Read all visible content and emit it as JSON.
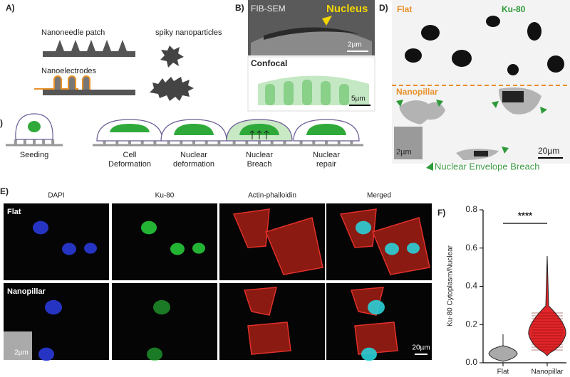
{
  "panel_a": {
    "label": "A)",
    "items": [
      "Nanoneedle patch",
      "spiky nanoparticles",
      "Nanoelectrodes"
    ]
  },
  "panel_b": {
    "label": "B)",
    "top_image": {
      "title": "FIB-SEM",
      "annotation": "Nucleus",
      "scale": "2µm"
    },
    "bottom_image": {
      "title": "Confocal",
      "scale": "5µm"
    }
  },
  "panel_c": {
    "label": ")",
    "steps": [
      {
        "lines": [
          "Seeding"
        ]
      },
      {
        "lines": [
          "Cell",
          "Deformation"
        ]
      },
      {
        "lines": [
          "Nuclear",
          "deformation"
        ]
      },
      {
        "lines": [
          "Nuclear",
          "Breach"
        ]
      },
      {
        "lines": [
          "Nuclear",
          "repair"
        ]
      }
    ]
  },
  "panel_d": {
    "label": "D)",
    "flat": "Flat",
    "marker": "Ku-80",
    "nanopillar": "Nanopillar",
    "inset_scale": "2µm",
    "scale": "20µm",
    "annotation": "Nuclear Envelope Breach"
  },
  "panel_e": {
    "label": "E)",
    "columns": [
      "DAPI",
      "Ku-80",
      "Actin-phalloidin",
      "Merged"
    ],
    "rows": [
      "Flat",
      "Nanopillar"
    ],
    "inset_scale": "2µm",
    "scale": "20µm"
  },
  "panel_f": {
    "label": "F)",
    "y_label": "Ku-80 Cytoplasm/Nuclear",
    "categories": [
      "Flat",
      "Nanopillar"
    ],
    "significance": "****",
    "ylim": [
      0,
      0.8
    ],
    "yticks": [
      {
        "value": 0,
        "label": "0.0"
      },
      0.2,
      0.4,
      0.6,
      0.8
    ]
  }
}
